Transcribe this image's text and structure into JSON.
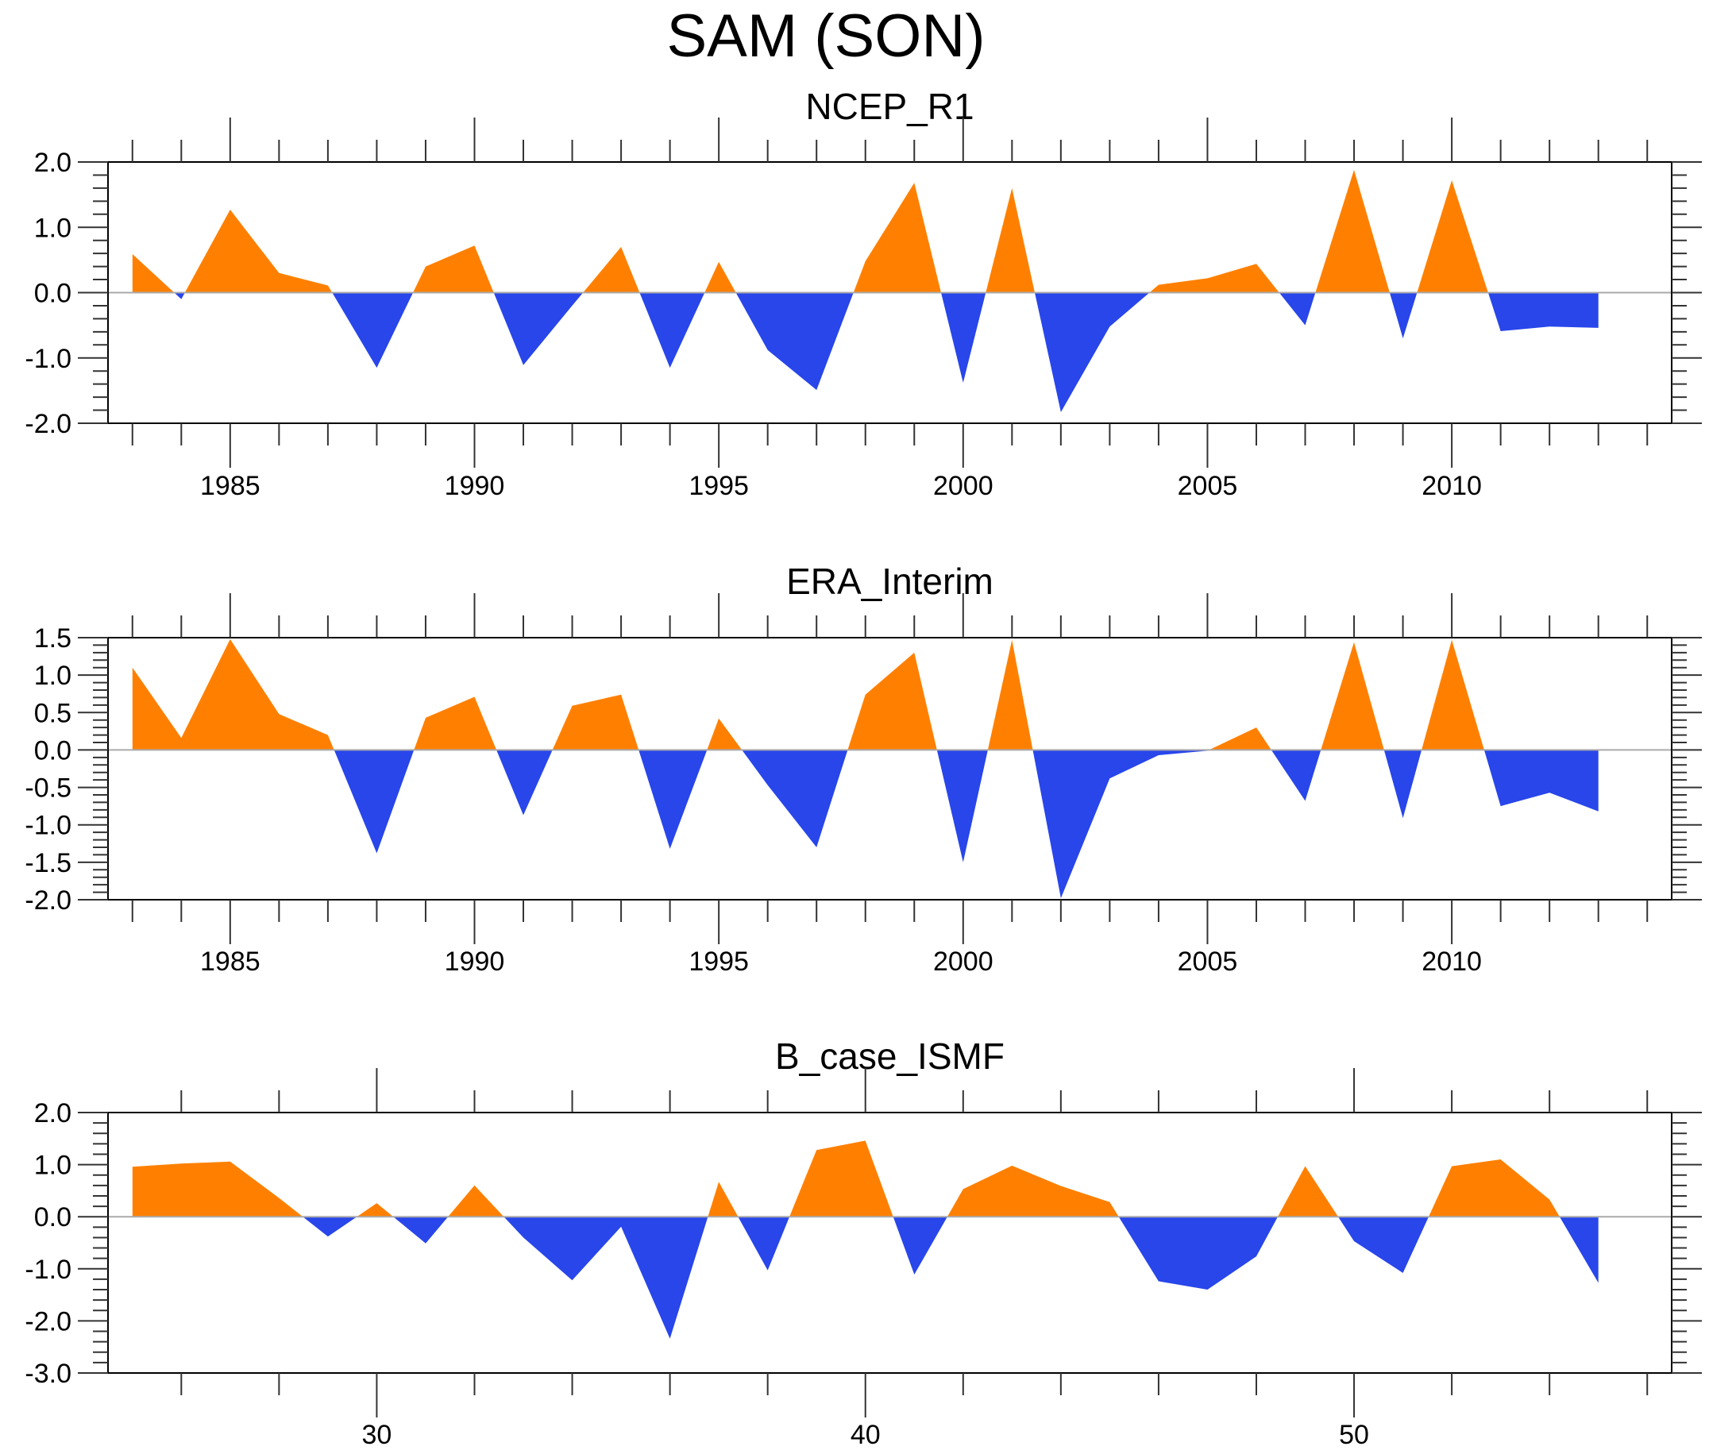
{
  "title": "SAM (SON)",
  "colors": {
    "positive": "#ff8000",
    "negative": "#2846ea",
    "zero_line": "#aaaaaa",
    "axis": "#000000"
  },
  "chart_data": [
    {
      "type": "area",
      "title": "NCEP_R1",
      "xlabel": "",
      "ylabel": "",
      "xlim": [
        1982.5,
        2014.5
      ],
      "ylim": [
        -2.0,
        2.0
      ],
      "x_major_ticks": [
        1985,
        1990,
        1995,
        2000,
        2005,
        2010
      ],
      "x_tick_labels": [
        "1985",
        "1990",
        "1995",
        "2000",
        "2005",
        "2010"
      ],
      "x_minor_step": 1,
      "y_major_ticks": [
        -2.0,
        -1.0,
        0.0,
        1.0,
        2.0
      ],
      "y_tick_labels": [
        "-2.0",
        "-1.0",
        "0.0",
        "1.0",
        "2.0"
      ],
      "y_minor_step": 0.2,
      "reference_line": 0.0,
      "grid": false,
      "x": [
        1983,
        1984,
        1985,
        1986,
        1987,
        1988,
        1989,
        1990,
        1991,
        1992,
        1993,
        1994,
        1995,
        1996,
        1997,
        1998,
        1999,
        2000,
        2001,
        2002,
        2003,
        2004,
        2005,
        2006,
        2007,
        2008,
        2009,
        2010,
        2011,
        2012,
        2013
      ],
      "values": [
        0.59,
        -0.1,
        1.27,
        0.3,
        0.11,
        -1.15,
        0.4,
        0.72,
        -1.11,
        -0.2,
        0.7,
        -1.15,
        0.47,
        -0.88,
        -1.49,
        0.48,
        1.68,
        -1.38,
        1.6,
        -1.83,
        -0.52,
        0.12,
        0.22,
        0.44,
        -0.5,
        1.88,
        -0.7,
        1.72,
        -0.59,
        -0.52,
        -0.54
      ]
    },
    {
      "type": "area",
      "title": "ERA_Interim",
      "xlabel": "",
      "ylabel": "",
      "xlim": [
        1982.5,
        2014.5
      ],
      "ylim": [
        -2.0,
        1.5
      ],
      "x_major_ticks": [
        1985,
        1990,
        1995,
        2000,
        2005,
        2010
      ],
      "x_tick_labels": [
        "1985",
        "1990",
        "1995",
        "2000",
        "2005",
        "2010"
      ],
      "x_minor_step": 1,
      "y_major_ticks": [
        -2.0,
        -1.5,
        -1.0,
        -0.5,
        0.0,
        0.5,
        1.0,
        1.5
      ],
      "y_tick_labels": [
        "-2.0",
        "-1.5",
        "-1.0",
        "-0.5",
        "0.0",
        "0.5",
        "1.0",
        "1.5"
      ],
      "y_minor_step": 0.1,
      "reference_line": 0.0,
      "grid": false,
      "x": [
        1983,
        1984,
        1985,
        1986,
        1987,
        1988,
        1989,
        1990,
        1991,
        1992,
        1993,
        1994,
        1995,
        1996,
        1997,
        1998,
        1999,
        2000,
        2001,
        2002,
        2003,
        2004,
        2005,
        2006,
        2007,
        2008,
        2009,
        2010,
        2011,
        2012,
        2013
      ],
      "values": [
        1.1,
        0.16,
        1.48,
        0.48,
        0.2,
        -1.38,
        0.43,
        0.71,
        -0.87,
        0.59,
        0.74,
        -1.32,
        0.42,
        -0.47,
        -1.3,
        0.74,
        1.3,
        -1.5,
        1.47,
        -1.98,
        -0.38,
        -0.07,
        -0.01,
        0.3,
        -0.68,
        1.44,
        -0.91,
        1.47,
        -0.75,
        -0.57,
        -0.82
      ]
    },
    {
      "type": "area",
      "title": "B_case_ISMF",
      "xlabel": "",
      "ylabel": "",
      "xlim": [
        24.5,
        56.5
      ],
      "ylim": [
        -3.0,
        2.0
      ],
      "x_major_ticks": [
        30,
        40,
        50
      ],
      "x_tick_labels": [
        "30",
        "40",
        "50"
      ],
      "x_minor_step": 2,
      "y_major_ticks": [
        -3.0,
        -2.0,
        -1.0,
        0.0,
        1.0,
        2.0
      ],
      "y_tick_labels": [
        "-3.0",
        "-2.0",
        "-1.0",
        "0.0",
        "1.0",
        "2.0"
      ],
      "y_minor_step": 0.2,
      "reference_line": 0.0,
      "grid": false,
      "x": [
        25,
        26,
        27,
        28,
        29,
        30,
        31,
        32,
        33,
        34,
        35,
        36,
        37,
        38,
        39,
        40,
        41,
        42,
        43,
        44,
        45,
        46,
        47,
        48,
        49,
        50,
        51,
        52,
        53,
        54,
        55
      ],
      "values": [
        0.96,
        1.02,
        1.06,
        0.36,
        -0.38,
        0.26,
        -0.51,
        0.6,
        -0.4,
        -1.22,
        -0.19,
        -2.34,
        0.67,
        -1.03,
        1.28,
        1.46,
        -1.11,
        0.53,
        0.98,
        0.59,
        0.28,
        -1.24,
        -1.4,
        -0.76,
        0.97,
        -0.47,
        -1.08,
        0.97,
        1.1,
        0.33,
        -1.27
      ]
    }
  ]
}
